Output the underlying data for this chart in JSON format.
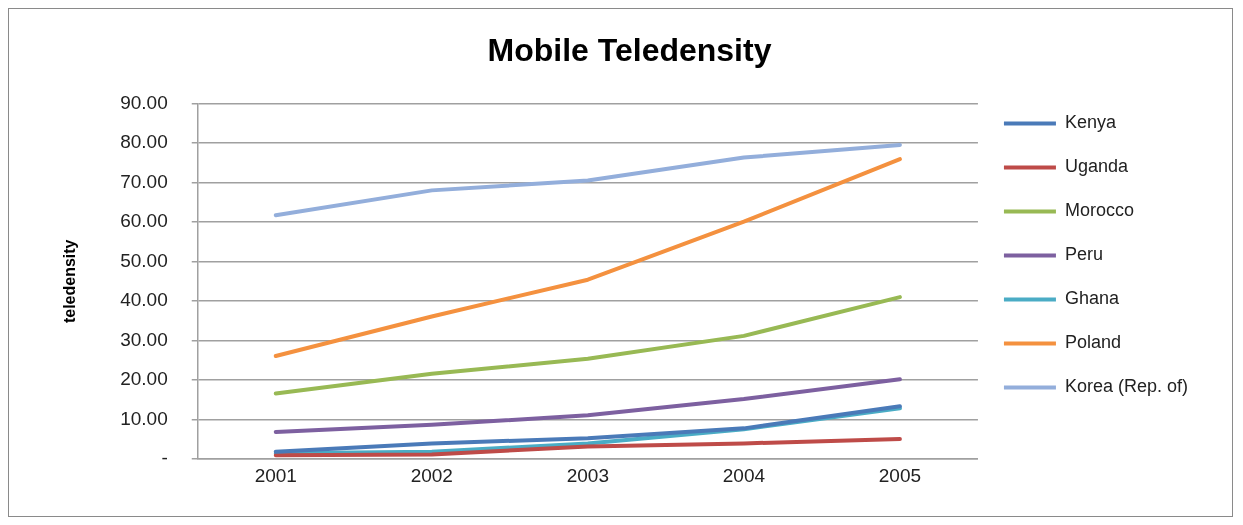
{
  "chart_data": {
    "type": "line",
    "title": "Mobile Teledensity",
    "ylabel": "teledensity",
    "categories": [
      "2001",
      "2002",
      "2003",
      "2004",
      "2005"
    ],
    "ylim": [
      0,
      90
    ],
    "yticks": [
      {
        "value": 0,
        "label": "-"
      },
      {
        "value": 10,
        "label": "10.00"
      },
      {
        "value": 20,
        "label": "20.00"
      },
      {
        "value": 30,
        "label": "30.00"
      },
      {
        "value": 40,
        "label": "40.00"
      },
      {
        "value": 50,
        "label": "50.00"
      },
      {
        "value": 60,
        "label": "60.00"
      },
      {
        "value": 70,
        "label": "70.00"
      },
      {
        "value": 80,
        "label": "80.00"
      },
      {
        "value": 90,
        "label": "90.00"
      }
    ],
    "grid": "y",
    "legend": "right",
    "marker": "none",
    "line_style": "solid",
    "series": [
      {
        "name": "Kenya",
        "color": "#4a7ab8",
        "values": [
          1.9,
          4.0,
          5.3,
          7.8,
          13.4
        ]
      },
      {
        "name": "Uganda",
        "color": "#be4b48",
        "values": [
          1.0,
          1.2,
          3.2,
          4.0,
          5.1
        ]
      },
      {
        "name": "Morocco",
        "color": "#98b954",
        "values": [
          16.6,
          21.6,
          25.4,
          31.2,
          41.0
        ]
      },
      {
        "name": "Peru",
        "color": "#7d60a0",
        "values": [
          6.9,
          8.7,
          11.1,
          15.2,
          20.2
        ]
      },
      {
        "name": "Ghana",
        "color": "#4aacc5",
        "values": [
          1.5,
          1.9,
          4.0,
          7.6,
          12.9
        ]
      },
      {
        "name": "Poland",
        "color": "#f4913f",
        "values": [
          26.1,
          36.1,
          45.4,
          60.1,
          75.9
        ]
      },
      {
        "name": "Korea (Rep. of)",
        "color": "#93aedb",
        "values": [
          61.7,
          68.0,
          70.5,
          76.3,
          79.5
        ]
      }
    ]
  }
}
